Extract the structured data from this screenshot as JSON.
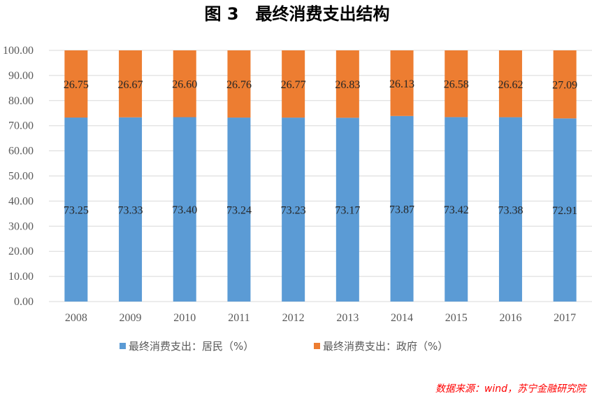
{
  "chart_data": {
    "type": "bar",
    "stacked": true,
    "title": "图 3　最终消费支出结构",
    "categories": [
      "2008",
      "2009",
      "2010",
      "2011",
      "2012",
      "2013",
      "2014",
      "2015",
      "2016",
      "2017"
    ],
    "series": [
      {
        "name": "最终消费支出：居民（%）",
        "color": "#5b9bd5",
        "values": [
          73.25,
          73.33,
          73.4,
          73.24,
          73.23,
          73.17,
          73.87,
          73.42,
          73.38,
          72.91
        ],
        "labels": [
          "73.25",
          "73.33",
          "73.40",
          "73.24",
          "73.23",
          "73.17",
          "73.87",
          "73.42",
          "73.38",
          "72.91"
        ]
      },
      {
        "name": "最终消费支出：政府（%）",
        "color": "#ed7d31",
        "values": [
          26.75,
          26.67,
          26.6,
          26.76,
          26.77,
          26.83,
          26.13,
          26.58,
          26.62,
          27.09
        ],
        "labels": [
          "26.75",
          "26.67",
          "26.60",
          "26.76",
          "26.77",
          "26.83",
          "26.13",
          "26.58",
          "26.62",
          "27.09"
        ]
      }
    ],
    "ylim": [
      0,
      100
    ],
    "yticks": [
      "0.00",
      "10.00",
      "20.00",
      "30.00",
      "40.00",
      "50.00",
      "60.00",
      "70.00",
      "80.00",
      "90.00",
      "100.00"
    ],
    "grid": true,
    "legend_position": "bottom",
    "xlabel": "",
    "ylabel": ""
  },
  "source": "数据来源：wind，苏宁金融研究院",
  "colors": {
    "grid": "#d9d9d9",
    "axis": "#d9d9d9",
    "source": "#ff0000"
  }
}
